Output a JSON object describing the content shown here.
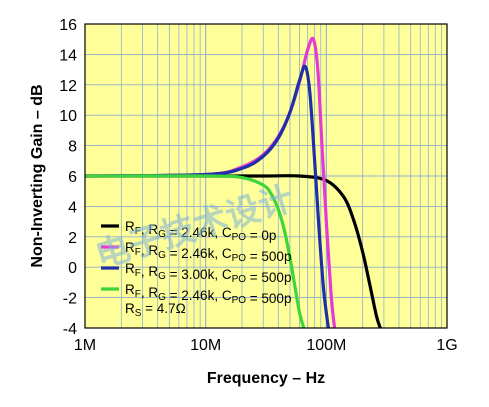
{
  "chart_data": {
    "type": "line",
    "title": "",
    "xlabel": "Frequency – Hz",
    "ylabel": "Non-Inverting Gain – dB",
    "x_scale": "log",
    "xlim": [
      1000000,
      1000000000
    ],
    "ylim": [
      -4,
      16
    ],
    "x_ticks": [
      {
        "value": 1000000,
        "label": "1M"
      },
      {
        "value": 10000000,
        "label": "10M"
      },
      {
        "value": 100000000,
        "label": "100M"
      },
      {
        "value": 1000000000,
        "label": "1G"
      }
    ],
    "y_ticks": [
      -4,
      -2,
      0,
      2,
      4,
      6,
      8,
      10,
      12,
      14,
      16
    ],
    "grid": true,
    "plot_background": "#ffff99",
    "legend_position": "bottom-left",
    "series": [
      {
        "name": "RF, RG = 2.46k, CPO = 0p",
        "legend": {
          "r1": "R",
          "s1": "F",
          "mid": ", R",
          "s2": "G",
          "mid2": " = 2.46k, C",
          "s3": "PO",
          "end": " = 0p"
        },
        "color": "#000000",
        "x": [
          1000000,
          5000000,
          10000000,
          30000000,
          60000000,
          100000000,
          140000000,
          170000000,
          200000000,
          230000000,
          260000000,
          280000000
        ],
        "y": [
          6,
          6,
          6,
          6,
          6,
          5.7,
          4.6,
          3.0,
          1.0,
          -1.2,
          -3.2,
          -4
        ]
      },
      {
        "name": "RF, RG = 2.46k, CPO = 500p",
        "legend": {
          "r1": "R",
          "s1": "F",
          "mid": ", R",
          "s2": "G",
          "mid2": " = 2.46k, C",
          "s3": "PO",
          "end": " = 500p"
        },
        "color": "#e23bd6",
        "x": [
          1000000,
          10000000,
          20000000,
          30000000,
          40000000,
          50000000,
          60000000,
          70000000,
          78000000,
          85000000,
          92000000,
          100000000,
          110000000,
          117000000
        ],
        "y": [
          6,
          6.1,
          6.6,
          7.4,
          8.6,
          10.2,
          12.2,
          14.3,
          15.0,
          13.0,
          8.0,
          3.0,
          -2.0,
          -4
        ]
      },
      {
        "name": "RF, RG = 3.00k, CPO = 500p",
        "legend": {
          "r1": "R",
          "s1": "F",
          "mid": ", R",
          "s2": "G",
          "mid2": " = 3.00k, C",
          "s3": "PO",
          "end": " = 500p"
        },
        "color": "#1f2fa8",
        "x": [
          1000000,
          10000000,
          20000000,
          30000000,
          40000000,
          50000000,
          60000000,
          67000000,
          73000000,
          80000000,
          87000000,
          95000000,
          104000000
        ],
        "y": [
          6,
          6.1,
          6.5,
          7.3,
          8.5,
          10.2,
          12.3,
          13.2,
          11.5,
          7.0,
          2.5,
          -1.5,
          -4
        ]
      },
      {
        "name": "RF, RG = 2.46k, CPO = 500p, RS = 4.7Ω",
        "legend": {
          "r1": "R",
          "s1": "F",
          "mid": ", R",
          "s2": "G",
          "mid2": " = 2.46k, C",
          "s3": "PO",
          "end": " = 500p",
          "line2_r": "R",
          "line2_s": "S",
          "line2_end": " = 4.7Ω"
        },
        "color": "#3cd63c",
        "x": [
          1000000,
          10000000,
          20000000,
          30000000,
          35000000,
          40000000,
          45000000,
          50000000,
          55000000,
          60000000,
          65000000
        ],
        "y": [
          6,
          6,
          5.9,
          5.4,
          4.8,
          3.8,
          2.4,
          0.6,
          -1.3,
          -3.0,
          -4
        ]
      }
    ],
    "watermark": "电子技术设计"
  }
}
